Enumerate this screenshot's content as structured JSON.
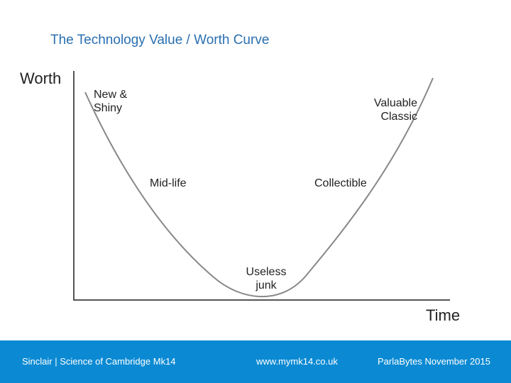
{
  "title": "The Technology Value / Worth Curve",
  "axes": {
    "y_label": "Worth",
    "x_label": "Time"
  },
  "stages": {
    "new_shiny": [
      "New &",
      "Shiny"
    ],
    "valuable_classic": [
      "Valuable",
      "Classic"
    ],
    "mid_life": [
      "Mid-life"
    ],
    "collectible": [
      "Collectible"
    ],
    "useless_junk": [
      "Useless",
      "junk"
    ]
  },
  "footer": {
    "left": "Sinclair | Science of Cambridge Mk14",
    "center": "www.mymk14.co.uk",
    "right": "ParlaBytes November 2015"
  },
  "colors": {
    "title": "#2a6fb0",
    "footer_bg": "#0b8ad3",
    "curve": "#888888",
    "axis": "#555555"
  }
}
